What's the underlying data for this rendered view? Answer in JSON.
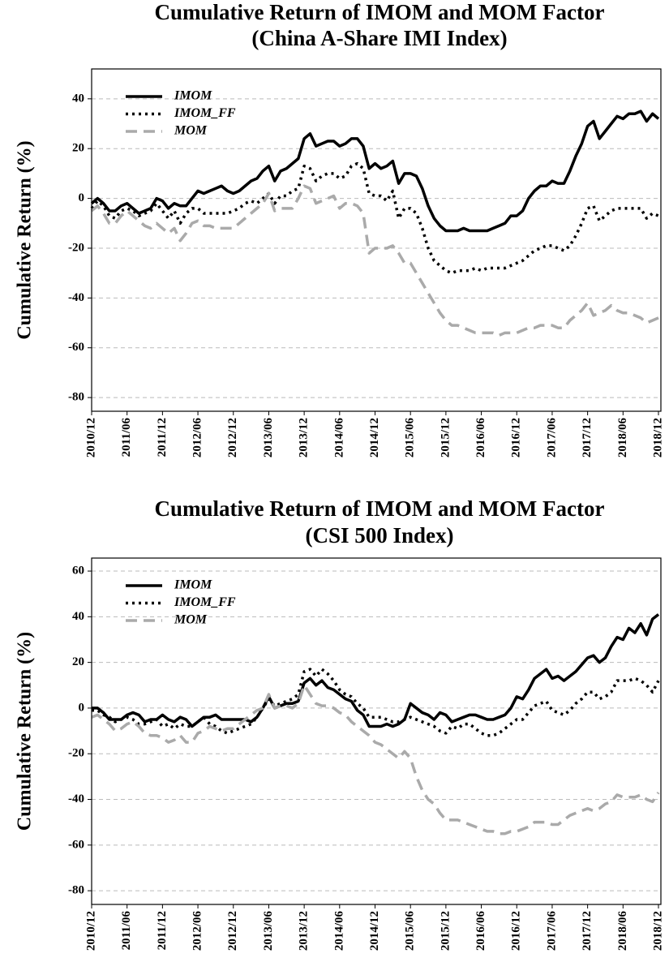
{
  "chart_data": [
    {
      "type": "line",
      "title": "Cumulative Return of IMOM and MOM Factor",
      "subtitle": "(China A-Share IMI Index)",
      "ylabel": "Cumulative Return (%)",
      "x": [
        "2010/12",
        "2011/01",
        "2011/02",
        "2011/03",
        "2011/04",
        "2011/05",
        "2011/06",
        "2011/07",
        "2011/08",
        "2011/09",
        "2011/10",
        "2011/11",
        "2011/12",
        "2012/01",
        "2012/02",
        "2012/03",
        "2012/04",
        "2012/05",
        "2012/06",
        "2012/07",
        "2012/08",
        "2012/09",
        "2012/10",
        "2012/11",
        "2012/12",
        "2013/01",
        "2013/02",
        "2013/03",
        "2013/04",
        "2013/05",
        "2013/06",
        "2013/07",
        "2013/08",
        "2013/09",
        "2013/10",
        "2013/11",
        "2013/12",
        "2014/01",
        "2014/02",
        "2014/03",
        "2014/04",
        "2014/05",
        "2014/06",
        "2014/07",
        "2014/08",
        "2014/09",
        "2014/10",
        "2014/11",
        "2014/12",
        "2015/01",
        "2015/02",
        "2015/03",
        "2015/04",
        "2015/05",
        "2015/06",
        "2015/07",
        "2015/08",
        "2015/09",
        "2015/10",
        "2015/11",
        "2015/12",
        "2016/01",
        "2016/02",
        "2016/03",
        "2016/04",
        "2016/05",
        "2016/06",
        "2016/07",
        "2016/08",
        "2016/09",
        "2016/10",
        "2016/11",
        "2016/12",
        "2017/01",
        "2017/02",
        "2017/03",
        "2017/04",
        "2017/05",
        "2017/06",
        "2017/07",
        "2017/08",
        "2017/09",
        "2017/10",
        "2017/11",
        "2017/12",
        "2018/01",
        "2018/02",
        "2018/03",
        "2018/04",
        "2018/05",
        "2018/06",
        "2018/07",
        "2018/08",
        "2018/09",
        "2018/10",
        "2018/11",
        "2018/12"
      ],
      "series": [
        {
          "name": "IMOM",
          "color": "#000000",
          "linestyle": "solid",
          "values": [
            -2,
            0,
            -2,
            -5,
            -5,
            -3,
            -2,
            -4,
            -6,
            -5,
            -4,
            0,
            -1,
            -4,
            -2,
            -3,
            -3,
            0,
            3,
            2,
            3,
            4,
            5,
            3,
            2,
            3,
            5,
            7,
            8,
            11,
            13,
            7,
            11,
            12,
            14,
            16,
            24,
            26,
            21,
            22,
            23,
            23,
            21,
            22,
            24,
            24,
            21,
            12,
            14,
            12,
            13,
            15,
            6,
            10,
            10,
            9,
            4,
            -3,
            -8,
            -11,
            -13,
            -13,
            -13,
            -12,
            -13,
            -13,
            -13,
            -13,
            -12,
            -11,
            -10,
            -7,
            -7,
            -5,
            0,
            3,
            5,
            5,
            7,
            6,
            6,
            11,
            17,
            22,
            29,
            31,
            24,
            27,
            30,
            33,
            32,
            34,
            34,
            35,
            31,
            34,
            32
          ]
        },
        {
          "name": "IMOM_FF",
          "color": "#000000",
          "linestyle": "dotted",
          "values": [
            -4,
            -1,
            -3,
            -7,
            -8,
            -5,
            -4,
            -5,
            -7,
            -6,
            -5,
            -2,
            -5,
            -8,
            -5,
            -10,
            -6,
            -4,
            -4,
            -6,
            -6,
            -6,
            -6,
            -6,
            -5,
            -4,
            -2,
            -1,
            -2,
            0,
            2,
            -2,
            1,
            1,
            3,
            4,
            13,
            12,
            7,
            9,
            10,
            10,
            8,
            9,
            13,
            14,
            12,
            2,
            1,
            1,
            -1,
            3,
            -8,
            -4,
            -4,
            -6,
            -12,
            -20,
            -25,
            -27,
            -29,
            -30,
            -29,
            -29,
            -29,
            -28,
            -29,
            -28,
            -28,
            -28,
            -28,
            -27,
            -26,
            -25,
            -23,
            -21,
            -20,
            -19,
            -19,
            -20,
            -21,
            -19,
            -15,
            -10,
            -4,
            -3,
            -9,
            -7,
            -5,
            -4,
            -4,
            -4,
            -4,
            -4,
            -8,
            -6,
            -7
          ]
        },
        {
          "name": "MOM",
          "color": "#aaaaaa",
          "linestyle": "dashed",
          "values": [
            -5,
            -3,
            -6,
            -10,
            -10,
            -7,
            -5,
            -7,
            -9,
            -11,
            -12,
            -10,
            -12,
            -14,
            -12,
            -17,
            -14,
            -10,
            -9,
            -11,
            -11,
            -12,
            -12,
            -12,
            -12,
            -10,
            -8,
            -6,
            -4,
            -2,
            2,
            -5,
            -4,
            -4,
            -4,
            0,
            5,
            4,
            -2,
            -1,
            0,
            1,
            -4,
            -2,
            -2,
            -3,
            -6,
            -22,
            -20,
            -20,
            -20,
            -19,
            -22,
            -26,
            -26,
            -30,
            -34,
            -38,
            -42,
            -46,
            -49,
            -51,
            -51,
            -52,
            -53,
            -54,
            -54,
            -54,
            -54,
            -55,
            -54,
            -54,
            -54,
            -53,
            -52,
            -52,
            -51,
            -51,
            -51,
            -52,
            -52,
            -49,
            -47,
            -45,
            -42,
            -47,
            -46,
            -45,
            -43,
            -45,
            -46,
            -46,
            -47,
            -48,
            -50,
            -49,
            -48
          ]
        }
      ],
      "xlim": [
        "2010/12",
        "2018/12"
      ],
      "xticks": [
        "2010/12",
        "2011/06",
        "2011/12",
        "2012/06",
        "2012/12",
        "2013/06",
        "2013/12",
        "2014/06",
        "2014/12",
        "2015/06",
        "2015/12",
        "2016/06",
        "2016/12",
        "2017/06",
        "2017/12",
        "2018/06",
        "2018/12"
      ],
      "ylim": [
        -85.5,
        52
      ],
      "yticks": [
        -80,
        -60,
        -40,
        -20,
        0,
        20,
        40
      ],
      "grid": true,
      "legend": "upper left"
    },
    {
      "type": "line",
      "title": "Cumulative Return of IMOM and MOM Factor",
      "subtitle": "(CSI 500 Index)",
      "ylabel": "Cumulative Return (%)",
      "x": [
        "2010/12",
        "2011/01",
        "2011/02",
        "2011/03",
        "2011/04",
        "2011/05",
        "2011/06",
        "2011/07",
        "2011/08",
        "2011/09",
        "2011/10",
        "2011/11",
        "2011/12",
        "2012/01",
        "2012/02",
        "2012/03",
        "2012/04",
        "2012/05",
        "2012/06",
        "2012/07",
        "2012/08",
        "2012/09",
        "2012/10",
        "2012/11",
        "2012/12",
        "2013/01",
        "2013/02",
        "2013/03",
        "2013/04",
        "2013/05",
        "2013/06",
        "2013/07",
        "2013/08",
        "2013/09",
        "2013/10",
        "2013/11",
        "2013/12",
        "2014/01",
        "2014/02",
        "2014/03",
        "2014/04",
        "2014/05",
        "2014/06",
        "2014/07",
        "2014/08",
        "2014/09",
        "2014/10",
        "2014/11",
        "2014/12",
        "2015/01",
        "2015/02",
        "2015/03",
        "2015/04",
        "2015/05",
        "2015/06",
        "2015/07",
        "2015/08",
        "2015/09",
        "2015/10",
        "2015/11",
        "2015/12",
        "2016/01",
        "2016/02",
        "2016/03",
        "2016/04",
        "2016/05",
        "2016/06",
        "2016/07",
        "2016/08",
        "2016/09",
        "2016/10",
        "2016/11",
        "2016/12",
        "2017/01",
        "2017/02",
        "2017/03",
        "2017/04",
        "2017/05",
        "2017/06",
        "2017/07",
        "2017/08",
        "2017/09",
        "2017/10",
        "2017/11",
        "2017/12",
        "2018/01",
        "2018/02",
        "2018/03",
        "2018/04",
        "2018/05",
        "2018/06",
        "2018/07",
        "2018/08",
        "2018/09",
        "2018/10",
        "2018/11",
        "2018/12"
      ],
      "series": [
        {
          "name": "IMOM",
          "color": "#000000",
          "linestyle": "solid",
          "values": [
            0,
            0,
            -2,
            -5,
            -5,
            -5,
            -3,
            -2,
            -3,
            -6,
            -5,
            -5,
            -3,
            -5,
            -6,
            -4,
            -5,
            -8,
            -6,
            -4,
            -4,
            -3,
            -5,
            -5,
            -5,
            -5,
            -5,
            -6,
            -4,
            0,
            5,
            0,
            1,
            2,
            2,
            3,
            11,
            13,
            10,
            12,
            9,
            8,
            6,
            4,
            3,
            -1,
            -3,
            -8,
            -8,
            -8,
            -7,
            -8,
            -7,
            -5,
            2,
            0,
            -2,
            -3,
            -5,
            -2,
            -3,
            -6,
            -5,
            -4,
            -3,
            -3,
            -4,
            -5,
            -5,
            -4,
            -3,
            0,
            5,
            4,
            8,
            13,
            15,
            17,
            13,
            14,
            12,
            14,
            16,
            19,
            22,
            23,
            20,
            22,
            27,
            31,
            30,
            35,
            33,
            37,
            32,
            39,
            41
          ]
        },
        {
          "name": "IMOM_FF",
          "color": "#000000",
          "linestyle": "dotted",
          "values": [
            -1,
            -1,
            -3,
            -4,
            -6,
            -5,
            -4,
            -5,
            -7,
            -7,
            -6,
            -5,
            -8,
            -7,
            -9,
            -7,
            -8,
            -8,
            -6,
            -4,
            -7,
            -8,
            -10,
            -11,
            -10,
            -9,
            -8,
            -7,
            -4,
            0,
            4,
            1,
            2,
            3,
            4,
            6,
            16,
            17,
            14,
            17,
            15,
            12,
            8,
            6,
            5,
            2,
            0,
            -4,
            -4,
            -4,
            -5,
            -6,
            -6,
            -5,
            -4,
            -5,
            -6,
            -7,
            -8,
            -10,
            -11,
            -8,
            -9,
            -7,
            -7,
            -9,
            -11,
            -12,
            -12,
            -11,
            -9,
            -7,
            -5,
            -5,
            -2,
            1,
            2,
            3,
            -1,
            -2,
            -3,
            -1,
            2,
            4,
            7,
            7,
            4,
            5,
            7,
            12,
            12,
            12,
            13,
            12,
            10,
            7,
            12
          ]
        },
        {
          "name": "MOM",
          "color": "#aaaaaa",
          "linestyle": "dashed",
          "values": [
            -4,
            -3,
            -5,
            -7,
            -10,
            -9,
            -7,
            -6,
            -8,
            -11,
            -12,
            -12,
            -13,
            -15,
            -14,
            -12,
            -15,
            -15,
            -11,
            -10,
            -8,
            -9,
            -10,
            -9,
            -9,
            -7,
            -5,
            -3,
            -1,
            0,
            6,
            0,
            1,
            1,
            0,
            2,
            10,
            6,
            2,
            1,
            1,
            0,
            -2,
            -3,
            -6,
            -8,
            -10,
            -12,
            -15,
            -16,
            -18,
            -20,
            -22,
            -19,
            -22,
            -30,
            -36,
            -40,
            -42,
            -46,
            -49,
            -49,
            -49,
            -50,
            -51,
            -52,
            -53,
            -54,
            -54,
            -55,
            -55,
            -54,
            -54,
            -53,
            -52,
            -50,
            -50,
            -50,
            -51,
            -51,
            -49,
            -47,
            -46,
            -45,
            -44,
            -45,
            -44,
            -42,
            -41,
            -38,
            -39,
            -39,
            -39,
            -38,
            -40,
            -41,
            -37
          ]
        }
      ],
      "xlim": [
        "2010/12",
        "2018/12"
      ],
      "xticks": [
        "2010/12",
        "2011/06",
        "2011/12",
        "2012/06",
        "2012/12",
        "2013/06",
        "2013/12",
        "2014/06",
        "2014/12",
        "2015/06",
        "2015/12",
        "2016/06",
        "2016/12",
        "2017/06",
        "2017/12",
        "2018/06",
        "2018/12"
      ],
      "ylim": [
        -86,
        65.7
      ],
      "yticks": [
        -80,
        -60,
        -40,
        -20,
        0,
        20,
        40,
        60
      ],
      "grid": true,
      "legend": "upper left"
    }
  ]
}
